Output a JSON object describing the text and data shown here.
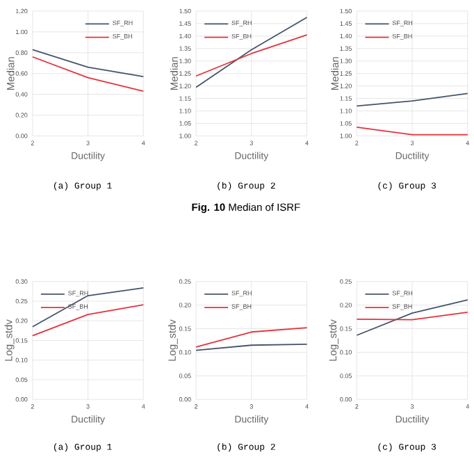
{
  "chart_data": [
    {
      "type": "line",
      "xlabel": "Ductility",
      "ylabel": "Median",
      "annotations": [
        "(a) Group 1"
      ],
      "x": [
        2,
        3,
        4
      ],
      "xlim": [
        2,
        4
      ],
      "xticks": [
        2,
        3,
        4
      ],
      "ylim": [
        0,
        1.2
      ],
      "yticks": [
        {
          "value": 0,
          "label": "0.00"
        },
        {
          "value": 0.2,
          "label": "0.20"
        },
        {
          "value": 0.4,
          "label": "0.40"
        },
        {
          "value": 0.6,
          "label": "0.60"
        },
        {
          "value": 0.8,
          "label": "0.80"
        },
        {
          "value": 1.0,
          "label": "1.00"
        },
        {
          "value": 1.2,
          "label": "1.20"
        }
      ],
      "grid": true,
      "legend": "top right",
      "series": [
        {
          "name": "SF_RH",
          "color": "#44546a",
          "values": [
            0.83,
            0.66,
            0.57
          ]
        },
        {
          "name": "SF_BH",
          "color": "#e8303a",
          "values": [
            0.76,
            0.56,
            0.43
          ]
        }
      ]
    },
    {
      "type": "line",
      "xlabel": "Ductility",
      "ylabel": "Median",
      "annotations": [
        "(b) Group 2",
        "**Fig. 10** Median of ISRF"
      ],
      "x": [
        2,
        3,
        4
      ],
      "xlim": [
        2,
        4
      ],
      "xticks": [
        2,
        3,
        4
      ],
      "ylim": [
        1.0,
        1.5
      ],
      "yticks": [
        {
          "value": 1.0,
          "label": "1.00"
        },
        {
          "value": 1.05,
          "label": "1.05"
        },
        {
          "value": 1.1,
          "label": "1.10"
        },
        {
          "value": 1.15,
          "label": "1.15"
        },
        {
          "value": 1.2,
          "label": "1.20"
        },
        {
          "value": 1.25,
          "label": "1.25"
        },
        {
          "value": 1.3,
          "label": "1.30"
        },
        {
          "value": 1.35,
          "label": "1.35"
        },
        {
          "value": 1.4,
          "label": "1.40"
        },
        {
          "value": 1.45,
          "label": "1.45"
        },
        {
          "value": 1.5,
          "label": "1.50"
        }
      ],
      "grid": true,
      "legend": "top left",
      "series": [
        {
          "name": "SF_RH",
          "color": "#44546a",
          "values": [
            1.195,
            1.345,
            1.475
          ]
        },
        {
          "name": "SF_BH",
          "color": "#e8303a",
          "values": [
            1.24,
            1.33,
            1.405
          ]
        }
      ]
    },
    {
      "type": "line",
      "xlabel": "Ductility",
      "ylabel": "Median",
      "annotations": [
        "(c) Group 3"
      ],
      "x": [
        2,
        3,
        4
      ],
      "xlim": [
        2,
        4
      ],
      "xticks": [
        2,
        3,
        4
      ],
      "ylim": [
        1.0,
        1.5
      ],
      "yticks": [
        {
          "value": 1.0,
          "label": "1.00"
        },
        {
          "value": 1.05,
          "label": "1.05"
        },
        {
          "value": 1.1,
          "label": "1.10"
        },
        {
          "value": 1.15,
          "label": "1.15"
        },
        {
          "value": 1.2,
          "label": "1.20"
        },
        {
          "value": 1.25,
          "label": "1.25"
        },
        {
          "value": 1.3,
          "label": "1.30"
        },
        {
          "value": 1.35,
          "label": "1.35"
        },
        {
          "value": 1.4,
          "label": "1.40"
        },
        {
          "value": 1.45,
          "label": "1.45"
        },
        {
          "value": 1.5,
          "label": "1.50"
        }
      ],
      "grid": true,
      "legend": "top left",
      "series": [
        {
          "name": "SF_RH",
          "color": "#44546a",
          "values": [
            1.12,
            1.14,
            1.17
          ]
        },
        {
          "name": "SF_BH",
          "color": "#e8303a",
          "values": [
            1.035,
            1.005,
            1.005
          ]
        }
      ]
    },
    {
      "type": "line",
      "xlabel": "Ductility",
      "ylabel": "Log_stdv",
      "annotations": [
        "(a) Group 1"
      ],
      "x": [
        2,
        3,
        4
      ],
      "xlim": [
        2,
        4
      ],
      "xticks": [
        2,
        3,
        4
      ],
      "ylim": [
        0,
        0.3
      ],
      "yticks": [
        {
          "value": 0,
          "label": "0.00"
        },
        {
          "value": 0.05,
          "label": "0.05"
        },
        {
          "value": 0.1,
          "label": "0.10"
        },
        {
          "value": 0.15,
          "label": "0.15"
        },
        {
          "value": 0.2,
          "label": "0.20"
        },
        {
          "value": 0.25,
          "label": "0.25"
        },
        {
          "value": 0.3,
          "label": "0.30"
        }
      ],
      "grid": true,
      "legend": "top left",
      "series": [
        {
          "name": "SF_RH",
          "color": "#44546a",
          "values": [
            0.185,
            0.264,
            0.284
          ]
        },
        {
          "name": "SF_BH",
          "color": "#e8303a",
          "values": [
            0.162,
            0.216,
            0.241
          ]
        }
      ]
    },
    {
      "type": "line",
      "xlabel": "Ductility",
      "ylabel": "Log_stdv",
      "annotations": [
        "(b) Group 2"
      ],
      "x": [
        2,
        3,
        4
      ],
      "xlim": [
        2,
        4
      ],
      "xticks": [
        2,
        3,
        4
      ],
      "ylim": [
        0,
        0.25
      ],
      "yticks": [
        {
          "value": 0,
          "label": "0.00"
        },
        {
          "value": 0.05,
          "label": "0.05"
        },
        {
          "value": 0.1,
          "label": "0.10"
        },
        {
          "value": 0.15,
          "label": "0.15"
        },
        {
          "value": 0.2,
          "label": "0.20"
        },
        {
          "value": 0.25,
          "label": "0.25"
        }
      ],
      "grid": true,
      "legend": "top left",
      "series": [
        {
          "name": "SF_RH",
          "color": "#44546a",
          "values": [
            0.104,
            0.115,
            0.117
          ]
        },
        {
          "name": "SF_BH",
          "color": "#e8303a",
          "values": [
            0.111,
            0.143,
            0.152
          ]
        }
      ]
    },
    {
      "type": "line",
      "xlabel": "Ductility",
      "ylabel": "Log_stdv",
      "annotations": [
        "(c) Group 3"
      ],
      "x": [
        2,
        3,
        4
      ],
      "xlim": [
        2,
        4
      ],
      "xticks": [
        2,
        3,
        4
      ],
      "ylim": [
        0,
        0.25
      ],
      "yticks": [
        {
          "value": 0,
          "label": "0.00"
        },
        {
          "value": 0.05,
          "label": "0.05"
        },
        {
          "value": 0.1,
          "label": "0.10"
        },
        {
          "value": 0.15,
          "label": "0.15"
        },
        {
          "value": 0.2,
          "label": "0.20"
        },
        {
          "value": 0.25,
          "label": "0.25"
        }
      ],
      "grid": true,
      "legend": "top left",
      "series": [
        {
          "name": "SF_RH",
          "color": "#44546a",
          "values": [
            0.136,
            0.183,
            0.211
          ]
        },
        {
          "name": "SF_BH",
          "color": "#e8303a",
          "values": [
            0.17,
            0.169,
            0.185
          ]
        }
      ]
    }
  ]
}
